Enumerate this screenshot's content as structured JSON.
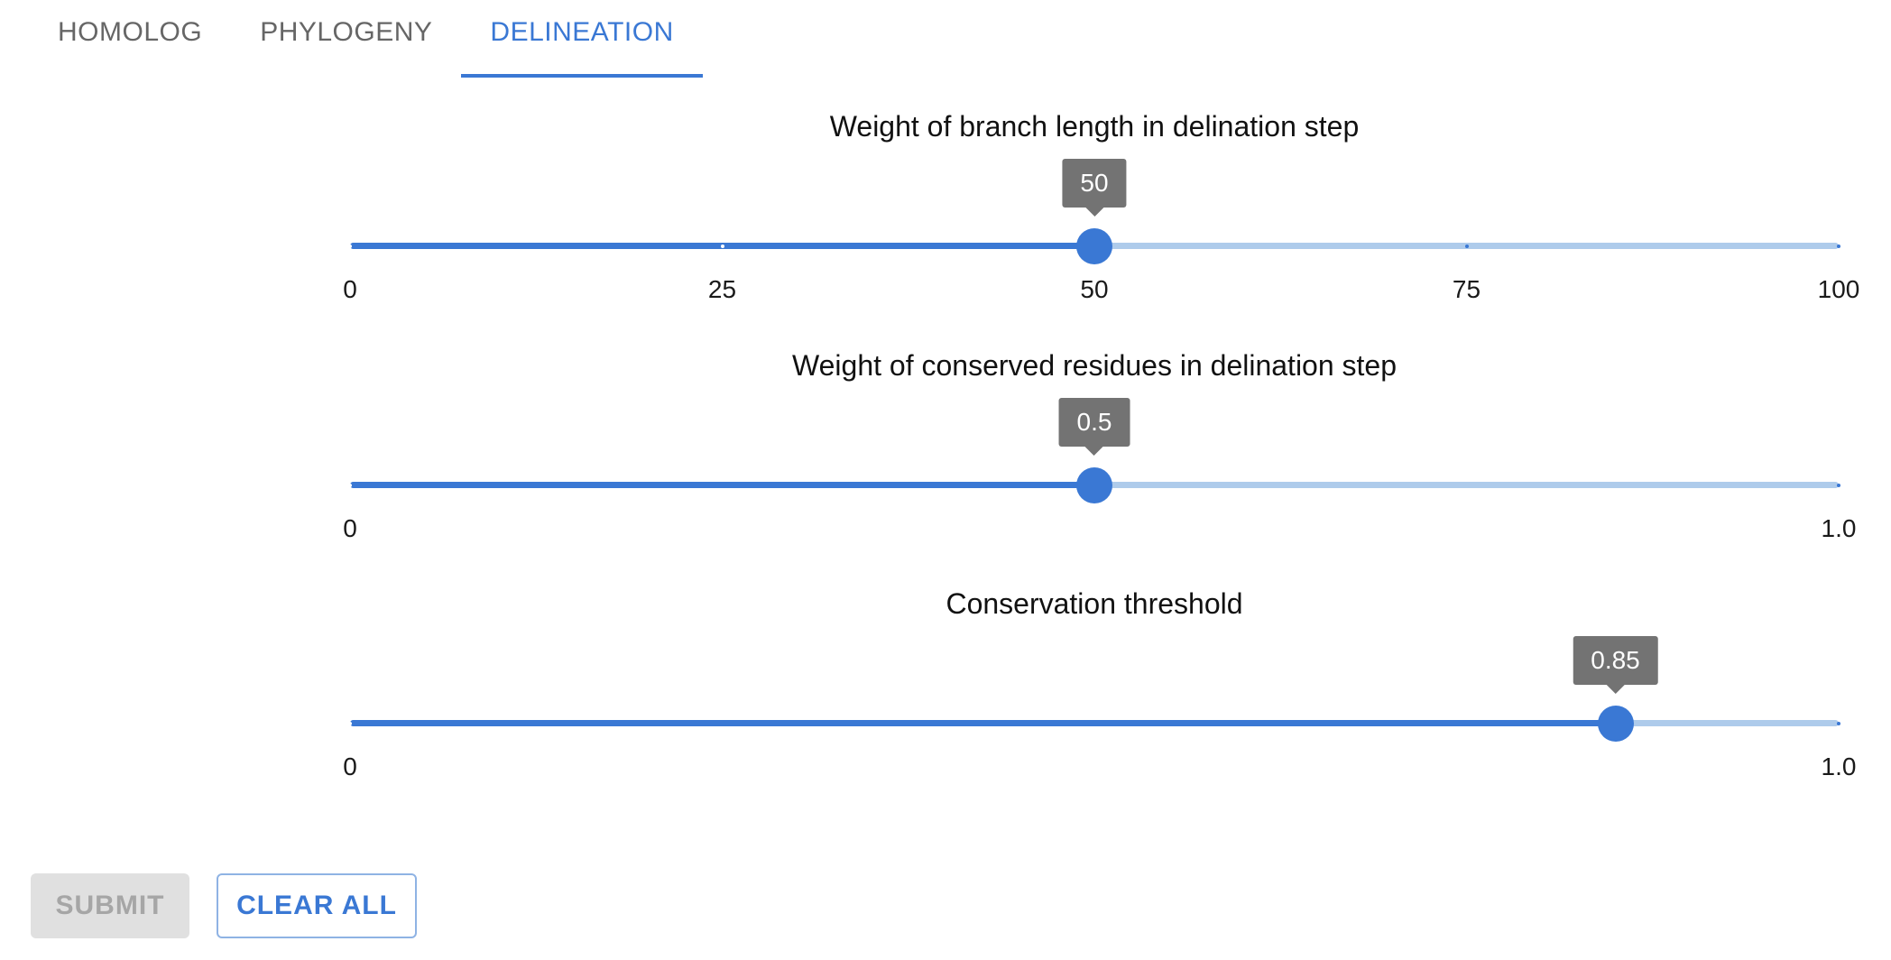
{
  "tabs": [
    {
      "label": "HOMOLOG",
      "active": false
    },
    {
      "label": "PHYLOGENY",
      "active": false
    },
    {
      "label": "DELINEATION",
      "active": true
    }
  ],
  "sliders": [
    {
      "title": "Weight of branch length in delination step",
      "min": 0,
      "max": 100,
      "value": 50,
      "value_label": "50",
      "marks": [
        0,
        25,
        50,
        75,
        100
      ],
      "labels": [
        {
          "at": 0,
          "text": "0"
        },
        {
          "at": 25,
          "text": "25"
        },
        {
          "at": 50,
          "text": "50"
        },
        {
          "at": 75,
          "text": "75"
        },
        {
          "at": 100,
          "text": "100"
        }
      ]
    },
    {
      "title": "Weight of conserved residues in delination step",
      "min": 0,
      "max": 1,
      "value": 0.5,
      "value_label": "0.5",
      "marks": [
        0,
        1
      ],
      "labels": [
        {
          "at": 0,
          "text": "0"
        },
        {
          "at": 1,
          "text": "1.0"
        }
      ]
    },
    {
      "title": "Conservation threshold",
      "min": 0,
      "max": 1,
      "value": 0.85,
      "value_label": "0.85",
      "marks": [
        0,
        1
      ],
      "labels": [
        {
          "at": 0,
          "text": "0"
        },
        {
          "at": 1,
          "text": "1.0"
        }
      ]
    }
  ],
  "buttons": {
    "submit": {
      "label": "SUBMIT",
      "disabled": true
    },
    "clear": {
      "label": "CLEAR ALL"
    }
  },
  "colors": {
    "accent": "#3a78d4",
    "track_inactive": "#aecbeb",
    "tooltip_bg": "#737373",
    "disabled_bg": "#e0e0e0"
  }
}
